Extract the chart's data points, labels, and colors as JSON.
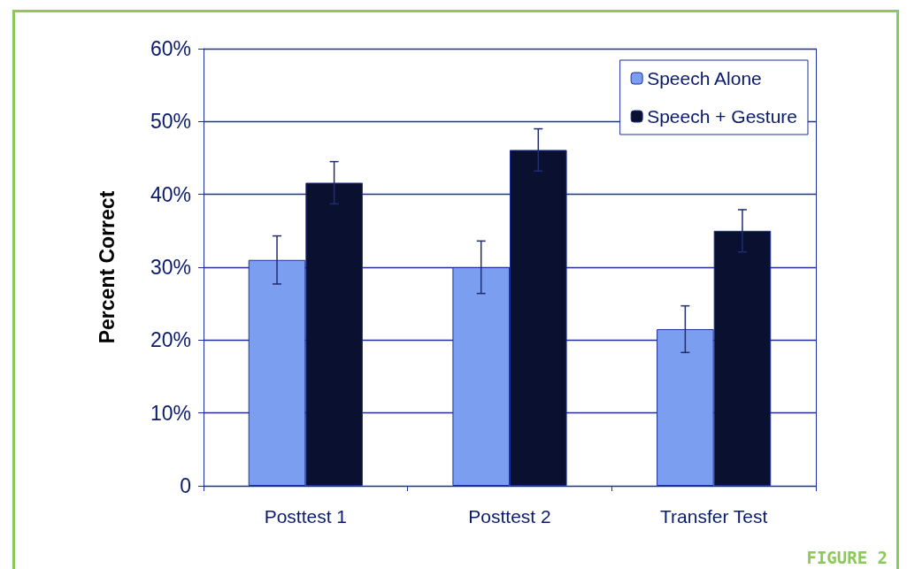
{
  "chart_data": {
    "type": "bar",
    "ylabel": "Percent Correct",
    "categories": [
      "Posttest 1",
      "Posttest 2",
      "Transfer Test"
    ],
    "series": [
      {
        "name": "Speech Alone",
        "color": "#7b9ef0",
        "values": [
          31.0,
          30.0,
          21.5
        ],
        "errors": [
          3.3,
          3.6,
          3.2
        ]
      },
      {
        "name": "Speech + Gesture",
        "color": "#0a1030",
        "values": [
          41.6,
          46.1,
          35.0
        ],
        "errors": [
          2.9,
          2.9,
          2.9
        ]
      }
    ],
    "ylim": [
      0,
      60
    ],
    "yticks": [
      0,
      {
        "value": 10,
        "label": "10%"
      },
      {
        "value": 20,
        "label": "20%"
      },
      {
        "value": 30,
        "label": "30%"
      },
      {
        "value": 40,
        "label": "40%"
      },
      {
        "value": 50,
        "label": "50%"
      },
      {
        "value": 60,
        "label": "60%"
      }
    ],
    "grid": "y",
    "legend": "top right",
    "annotations": [
      "FIGURE 2"
    ]
  }
}
